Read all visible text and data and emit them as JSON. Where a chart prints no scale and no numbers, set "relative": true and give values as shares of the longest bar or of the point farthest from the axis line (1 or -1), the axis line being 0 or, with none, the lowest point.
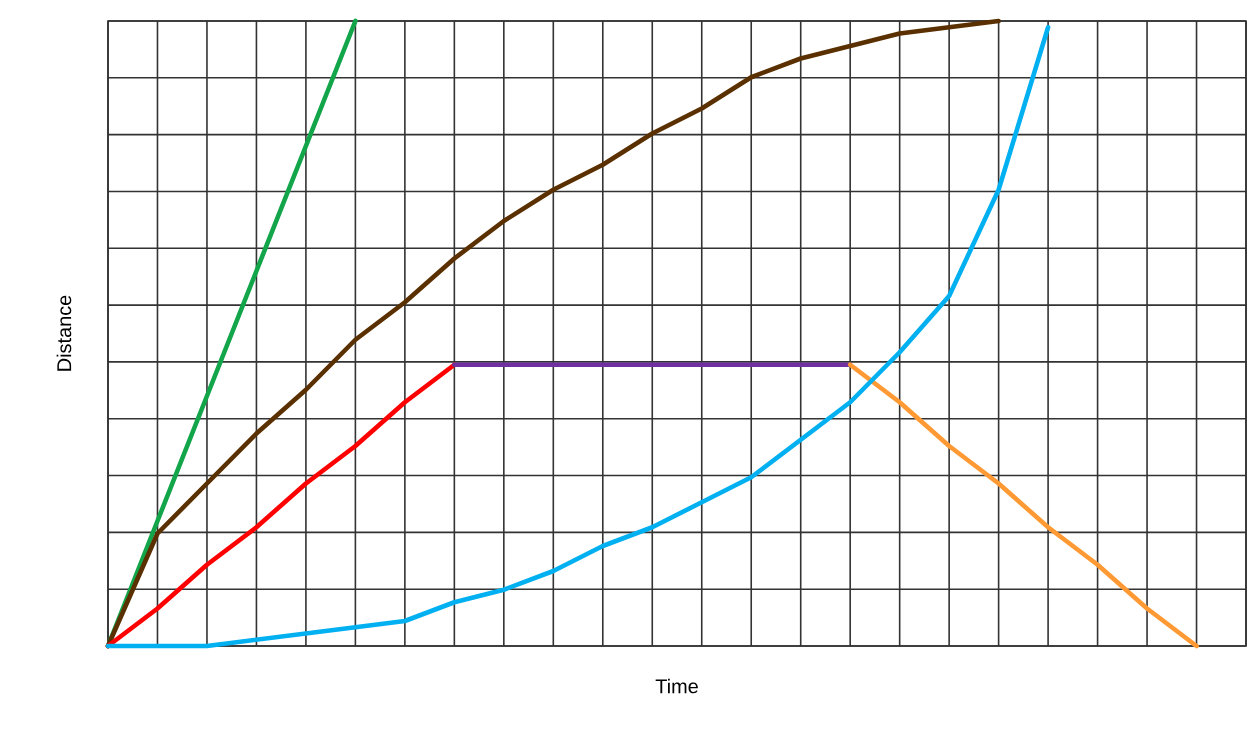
{
  "chart_data": {
    "type": "line",
    "xlabel": "Time",
    "ylabel": "Distance",
    "relative": true,
    "grid": true,
    "categories": [
      null,
      null,
      null,
      null,
      null,
      null,
      null,
      null,
      null,
      null,
      null,
      null,
      null,
      null,
      null,
      null,
      null,
      null,
      null,
      null,
      null,
      null,
      null,
      null
    ],
    "series": [
      {
        "color": "#12a54a",
        "values": [
          0,
          0.2,
          0.4,
          0.6,
          0.8,
          1.0,
          null,
          null,
          null,
          null,
          null,
          null,
          null,
          null,
          null,
          null,
          null,
          null,
          null,
          null,
          null,
          null,
          null,
          null
        ]
      },
      {
        "color": "#5a3000",
        "values": [
          0,
          0.18,
          0.26,
          0.34,
          0.41,
          0.49,
          0.55,
          0.62,
          0.68,
          0.73,
          0.77,
          0.82,
          0.86,
          0.91,
          0.94,
          0.96,
          0.98,
          0.99,
          1.0,
          null,
          null,
          null,
          null,
          null
        ]
      },
      {
        "color": "#ff0000",
        "values": [
          0,
          0.06,
          0.13,
          0.19,
          0.26,
          0.32,
          0.39,
          0.45,
          null,
          null,
          null,
          null,
          null,
          null,
          null,
          null,
          null,
          null,
          null,
          null,
          null,
          null,
          null,
          null
        ]
      },
      {
        "color": "#7030a0",
        "values": [
          null,
          null,
          null,
          null,
          null,
          null,
          null,
          0.45,
          0.45,
          0.45,
          0.45,
          0.45,
          0.45,
          0.45,
          0.45,
          0.45,
          null,
          null,
          null,
          null,
          null,
          null,
          null,
          null
        ]
      },
      {
        "color": "#ff9933",
        "values": [
          null,
          null,
          null,
          null,
          null,
          null,
          null,
          null,
          null,
          null,
          null,
          null,
          null,
          null,
          null,
          0.45,
          0.39,
          0.32,
          0.26,
          0.19,
          0.13,
          0.06,
          0,
          null
        ]
      },
      {
        "color": "#00b0f0",
        "values": [
          0,
          0,
          0,
          0.01,
          0.02,
          0.03,
          0.04,
          0.07,
          0.09,
          0.12,
          0.16,
          0.19,
          0.23,
          0.27,
          0.33,
          0.39,
          0.47,
          0.56,
          0.73,
          0.99,
          null,
          null,
          null,
          null
        ]
      }
    ]
  }
}
